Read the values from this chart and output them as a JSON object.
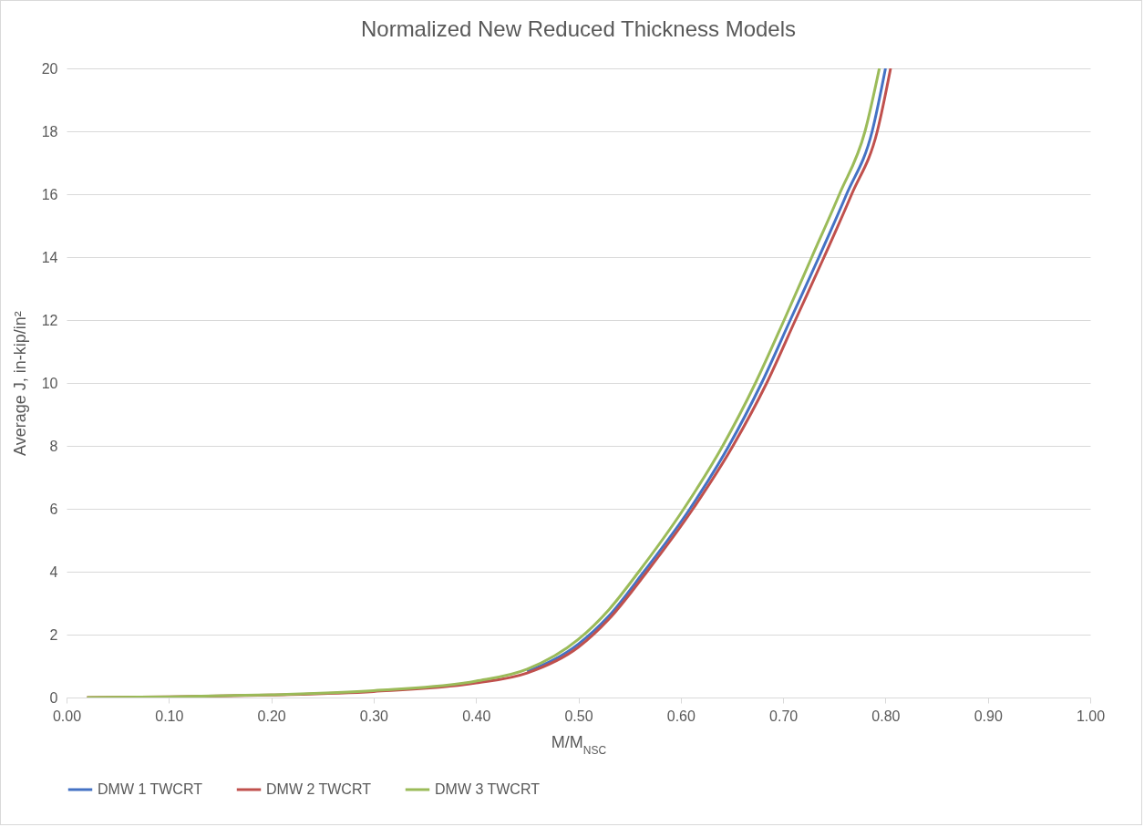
{
  "chart_data": {
    "type": "line",
    "title": "Normalized New Reduced Thickness Models",
    "xlabel": "M/M$_{NSC}$",
    "ylabel": "Average J, in-kip/in²",
    "xlim": [
      0,
      1
    ],
    "xticks": [
      {
        "value": 0,
        "label": "0.00"
      },
      {
        "value": 0.1,
        "label": "0.10"
      },
      {
        "value": 0.2,
        "label": "0.20"
      },
      {
        "value": 0.3,
        "label": "0.30"
      },
      {
        "value": 0.4,
        "label": "0.40"
      },
      {
        "value": 0.5,
        "label": "0.50"
      },
      {
        "value": 0.6,
        "label": "0.60"
      },
      {
        "value": 0.7,
        "label": "0.70"
      },
      {
        "value": 0.8,
        "label": "0.80"
      },
      {
        "value": 0.9,
        "label": "0.90"
      },
      {
        "value": 1,
        "label": "1.00"
      }
    ],
    "ylim": [
      0,
      20
    ],
    "yticks": [
      0,
      2,
      4,
      6,
      8,
      10,
      12,
      14,
      16,
      18,
      20
    ],
    "grid": "y",
    "legend": "bottom",
    "marker": "none",
    "line_style": "solid",
    "series": [
      {
        "name": "DMW 1 TWCRT",
        "color": "#4472c4",
        "x": [
          0.45,
          0.5,
          0.53,
          0.564,
          0.609,
          0.647,
          0.679,
          0.707,
          0.735,
          0.762,
          0.787,
          0.8
        ],
        "values": [
          0.82,
          1.7,
          2.6,
          4,
          6,
          8,
          10,
          12,
          14,
          16,
          18,
          20
        ]
      },
      {
        "name": "DMW 2 TWCRT",
        "color": "#c0504d",
        "x": [
          0.02,
          0.1,
          0.2,
          0.3,
          0.4,
          0.45,
          0.5,
          0.53,
          0.567,
          0.612,
          0.651,
          0.684,
          0.712,
          0.74,
          0.767,
          0.792,
          0.805
        ],
        "values": [
          0,
          0.02,
          0.08,
          0.19,
          0.46,
          0.78,
          1.6,
          2.5,
          4,
          6,
          8,
          10,
          12,
          14,
          16,
          18,
          20
        ]
      },
      {
        "name": "DMW 3 TWCRT",
        "color": "#9bbb59",
        "x": [
          0.02,
          0.1,
          0.2,
          0.3,
          0.4,
          0.45,
          0.5,
          0.53,
          0.559,
          0.603,
          0.641,
          0.673,
          0.701,
          0.728,
          0.755,
          0.78,
          0.794
        ],
        "values": [
          0,
          0.02,
          0.09,
          0.22,
          0.52,
          0.9,
          1.85,
          2.8,
          4,
          6,
          8,
          10,
          12,
          14,
          16,
          18,
          20
        ]
      }
    ]
  }
}
